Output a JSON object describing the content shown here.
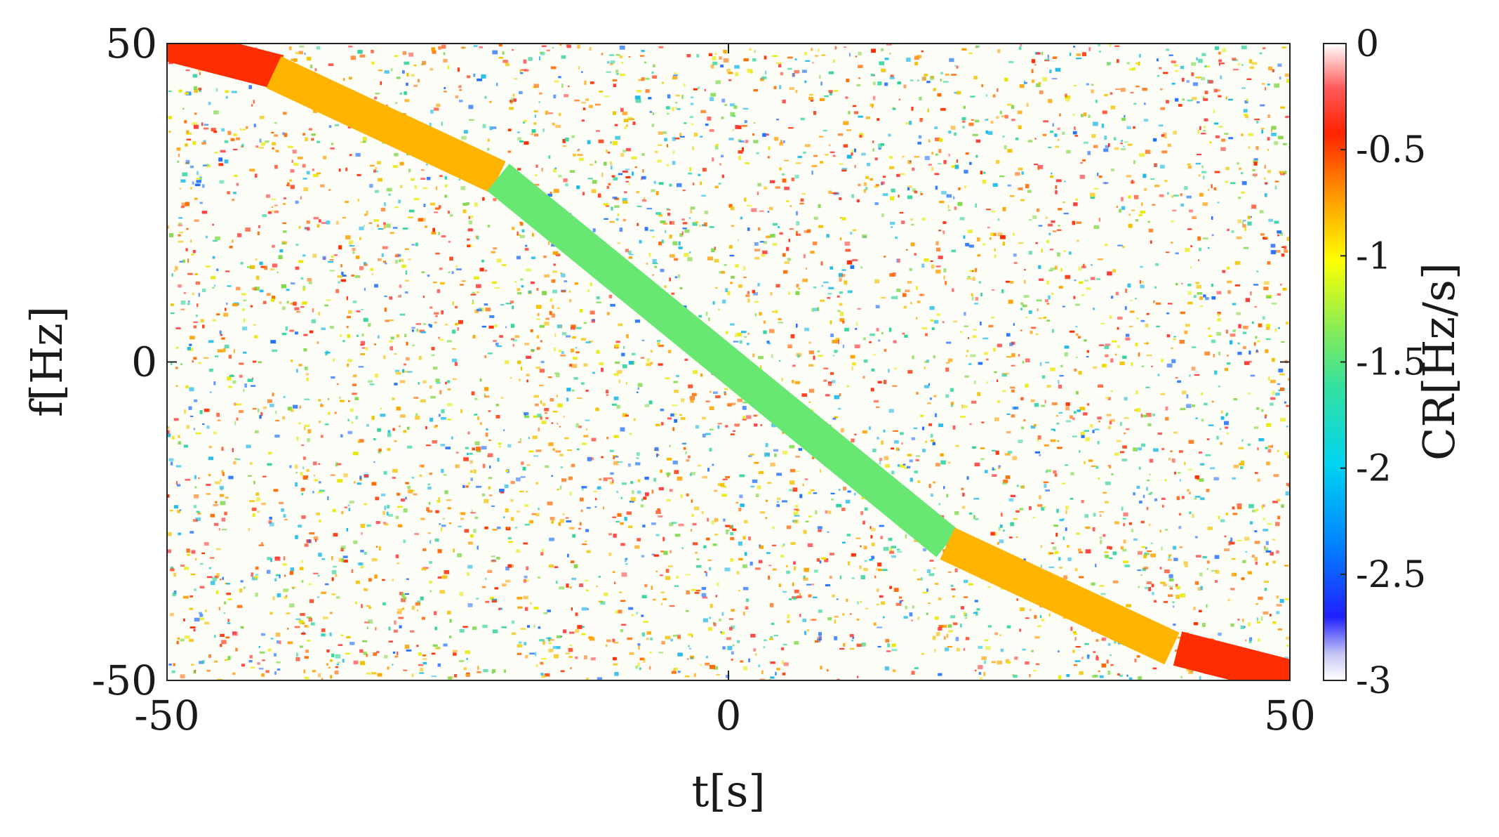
{
  "chart_data": {
    "type": "heatmap",
    "title": "",
    "xlabel": "t[s]",
    "ylabel": "f[Hz]",
    "xlim": [
      -50,
      50
    ],
    "ylim": [
      -50,
      50
    ],
    "x_ticks": [
      "-50",
      "0",
      "50"
    ],
    "y_ticks": [
      "50",
      "0",
      "-50"
    ],
    "grid": false,
    "background": "random chirp-rate noise field (speckle) covering the whole plot",
    "colorbar": {
      "label": "CR[Hz/s]",
      "range": [
        -3,
        0
      ],
      "ticks": [
        "0",
        "-0.5",
        "-1",
        "-1.5",
        "-2",
        "-2.5",
        "-3"
      ],
      "colormap": "jet (reversed, fading to white at both ends)"
    },
    "ridge": {
      "name": "",
      "width_hz": 5.5,
      "segments": [
        {
          "t": [
            -50,
            -40
          ],
          "f": [
            50,
            45.5
          ],
          "cr": -0.45
        },
        {
          "t": [
            -40.5,
            -20.5
          ],
          "f": [
            45.5,
            29.0
          ],
          "cr": -0.8
        },
        {
          "t": [
            -20.5,
            19.5
          ],
          "f": [
            29.0,
            -28.5
          ],
          "cr": -1.45
        },
        {
          "t": [
            19.5,
            39.5
          ],
          "f": [
            -28.5,
            -45.0
          ],
          "cr": -0.8
        },
        {
          "t": [
            40,
            50
          ],
          "f": [
            -45.0,
            -49.5
          ],
          "cr": -0.45
        }
      ]
    }
  }
}
